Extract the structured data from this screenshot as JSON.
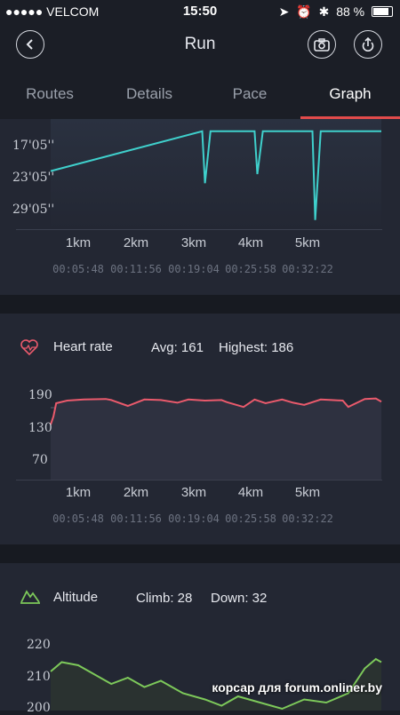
{
  "status_bar": {
    "carrier": "●●●●● VELCOM",
    "time": "15:50",
    "battery": "88 %"
  },
  "nav": {
    "title": "Run"
  },
  "tabs": [
    "Routes",
    "Details",
    "Pace",
    "Graph"
  ],
  "active_tab": "Graph",
  "pace_section": {
    "y_labels": [
      "17'05''",
      "23'05''",
      "29'05''"
    ],
    "km_labels": [
      "1km",
      "2km",
      "3km",
      "4km",
      "5km"
    ],
    "time_labels": [
      "00:05:48",
      "00:11:56",
      "00:19:04",
      "00:25:58",
      "00:32:22"
    ]
  },
  "heart_section": {
    "title": "Heart rate",
    "avg_label": "Avg: 161",
    "highest_label": "Highest: 186",
    "y_labels": [
      "190",
      "130",
      "70"
    ],
    "km_labels": [
      "1km",
      "2km",
      "3km",
      "4km",
      "5km"
    ],
    "time_labels": [
      "00:05:48",
      "00:11:56",
      "00:19:04",
      "00:25:58",
      "00:32:22"
    ]
  },
  "altitude_section": {
    "title": "Altitude",
    "climb_label": "Climb: 28",
    "down_label": "Down: 32",
    "y_labels": [
      "220",
      "210",
      "200"
    ]
  },
  "watermark": "корсар для forum.onliner.by",
  "colors": {
    "pace_line": "#3fd0cc",
    "heart_line": "#ea5a6c",
    "altitude_line": "#7dc95a",
    "tab_indicator": "#e24b4b"
  },
  "chart_data": [
    {
      "type": "line",
      "name": "pace",
      "x": [
        0.0,
        2.75,
        2.8,
        2.9,
        3.7,
        3.75,
        3.85,
        4.75,
        4.8,
        4.9,
        6.0
      ],
      "y_label_units": "min/km",
      "values": [
        17.5,
        11.0,
        19.5,
        11.0,
        11.0,
        18.0,
        11.0,
        11.0,
        25.5,
        11.0,
        11.0
      ]
    },
    {
      "type": "line",
      "name": "heart_rate",
      "ylim": [
        70,
        190
      ],
      "x": [
        0.0,
        0.05,
        0.1,
        0.3,
        0.6,
        1.0,
        1.1,
        1.4,
        1.7,
        2.0,
        2.3,
        2.5,
        2.8,
        3.1,
        3.2,
        3.5,
        3.7,
        3.9,
        4.2,
        4.4,
        4.6,
        4.9,
        5.1,
        5.3,
        5.4,
        5.7,
        5.9,
        6.0
      ],
      "values": [
        135,
        150,
        175,
        180,
        182,
        183,
        181,
        170,
        182,
        181,
        176,
        182,
        180,
        181,
        177,
        168,
        182,
        175,
        182,
        176,
        172,
        182,
        181,
        180,
        168,
        183,
        184,
        178
      ]
    },
    {
      "type": "line",
      "name": "altitude",
      "ylim": [
        200,
        220
      ],
      "x": [
        0.0,
        0.2,
        0.5,
        0.8,
        1.1,
        1.4,
        1.7,
        2.0,
        2.4,
        2.8,
        3.1,
        3.4,
        3.8,
        4.2,
        4.6,
        5.0,
        5.4,
        5.7,
        5.9,
        6.0
      ],
      "values": [
        212,
        215,
        214,
        211,
        208,
        210,
        207,
        209,
        205,
        203,
        201,
        204,
        202,
        200,
        203,
        202,
        205,
        213,
        216,
        215
      ]
    }
  ]
}
